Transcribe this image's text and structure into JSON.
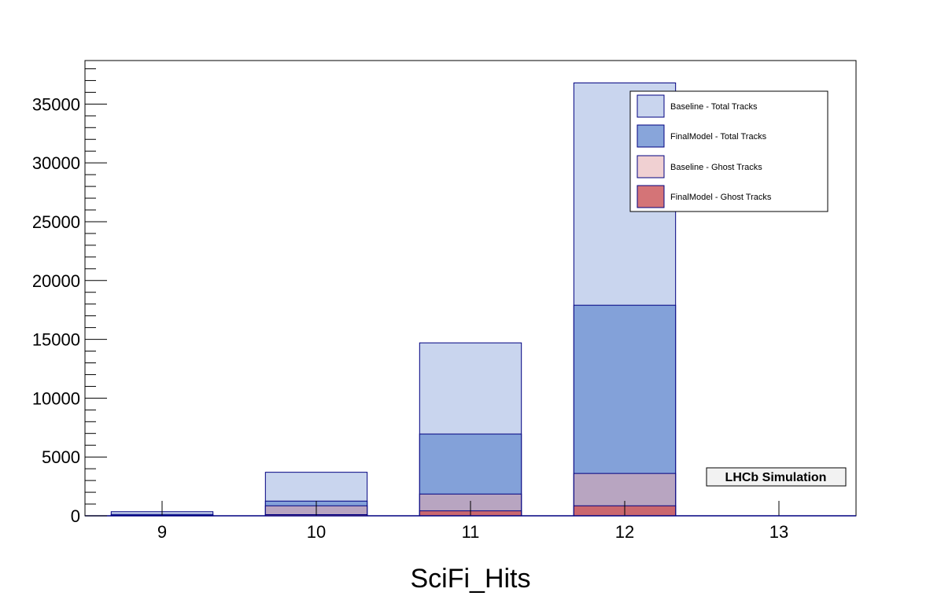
{
  "chart_data": {
    "type": "bar",
    "xlabel": "SciFi_Hits",
    "ylabel": "",
    "x_ticks": [
      "9",
      "10",
      "11",
      "12",
      "13"
    ],
    "y_ticks": [
      "0",
      "5000",
      "10000",
      "15000",
      "20000",
      "25000",
      "30000",
      "35000"
    ],
    "xlim": [
      8.5,
      13.5
    ],
    "ylim": [
      0,
      38700
    ],
    "categories": [
      9,
      10,
      11,
      12
    ],
    "series": [
      {
        "name": "Baseline - Total Tracks",
        "values": [
          350,
          3700,
          14700,
          36800
        ],
        "color": "#c9d5ee",
        "opacity": 1.0
      },
      {
        "name": "FinalModel - Total Tracks",
        "values": [
          120,
          1250,
          6950,
          17900
        ],
        "color": "#7b9bd6",
        "opacity": 0.9
      },
      {
        "name": "Baseline - Ghost Tracks",
        "values": [
          40,
          850,
          1850,
          3600
        ],
        "color": "#e3a9ad",
        "opacity": 0.55
      },
      {
        "name": "FinalModel - Ghost Tracks",
        "values": [
          15,
          100,
          420,
          850
        ],
        "color": "#cd5c5f",
        "opacity": 0.85
      }
    ],
    "grid": false,
    "legend_placement": "top-right",
    "annotation": "LHCb Simulation"
  }
}
